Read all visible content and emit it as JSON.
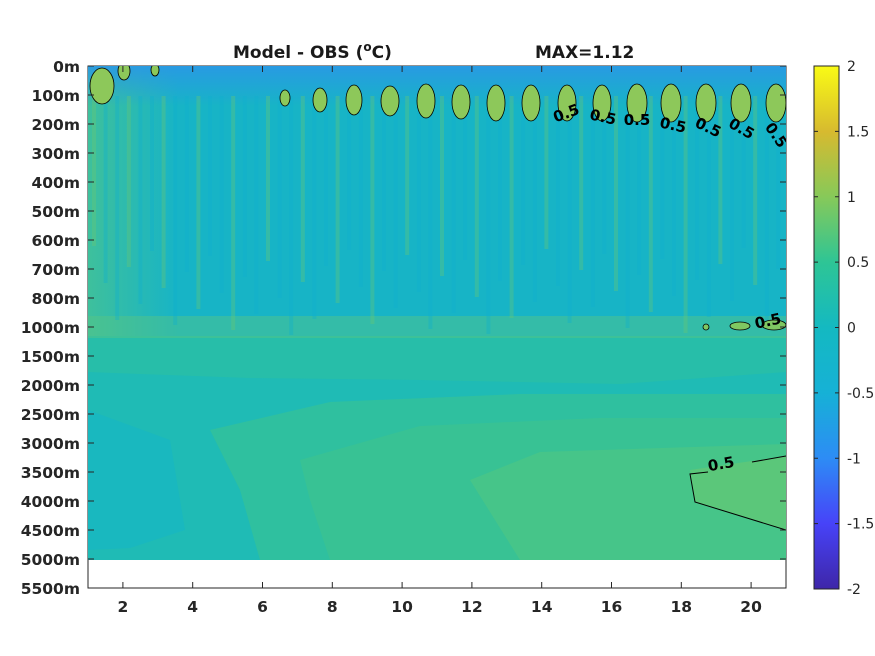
{
  "chart_data": {
    "type": "heatmap",
    "title": "Model - OBS (°C)",
    "title_main": "Model - OBS (",
    "title_sup": "o",
    "title_end": "C)",
    "max_text": "MAX=1.12",
    "x_ticks": [
      2,
      4,
      6,
      8,
      10,
      12,
      14,
      16,
      18,
      20
    ],
    "xlim": [
      1,
      21
    ],
    "y_tick_labels": [
      "0m",
      "100m",
      "200m",
      "300m",
      "400m",
      "500m",
      "600m",
      "700m",
      "800m",
      "1000m",
      "1500m",
      "2000m",
      "2500m",
      "3000m",
      "3500m",
      "4000m",
      "4500m",
      "5000m",
      "5500m"
    ],
    "data_depth_limit": "5000m",
    "colorbar": {
      "range": [
        -2,
        2
      ],
      "ticks": [
        "2",
        "1.5",
        "1",
        "0.5",
        "0",
        "-0.5",
        "-1",
        "-1.5",
        "-2"
      ],
      "colormap": [
        "#3e26a8",
        "#4743f8",
        "#2d8cf5",
        "#16b1d6",
        "#2ec595",
        "#87c959",
        "#d7ba2f",
        "#fcce2e",
        "#f9fb15"
      ]
    },
    "background_value_range": [
      0,
      0.3
    ],
    "contour_level": 0.5,
    "contour_labels": [
      "0.5",
      "0.5",
      "0.5",
      "0.5",
      "0.5",
      "0.5",
      "0.5",
      "0.5",
      "0.5"
    ]
  }
}
